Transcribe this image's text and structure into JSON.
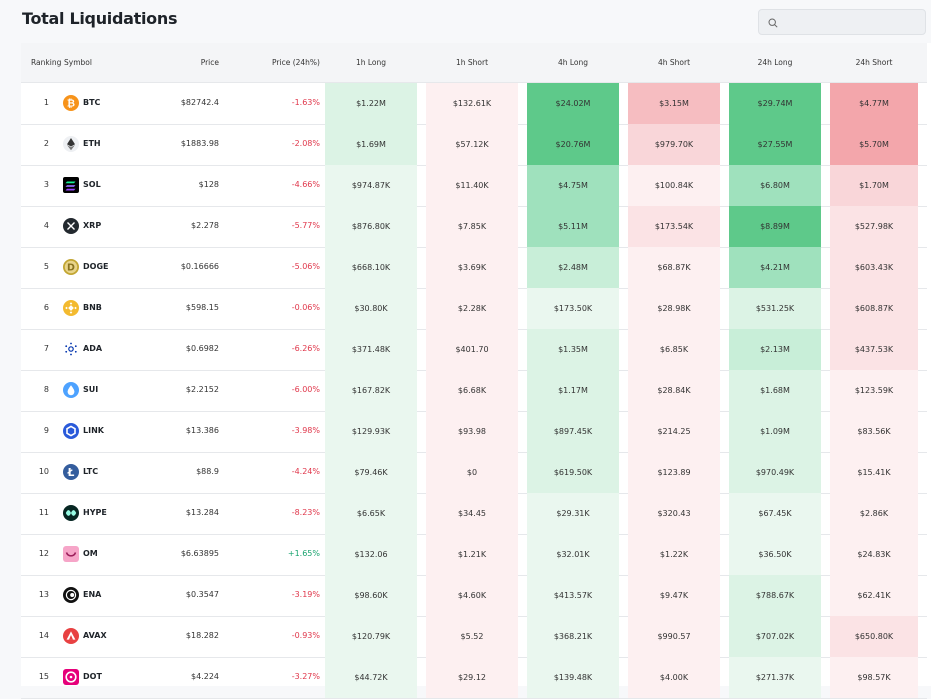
{
  "title": "Total Liquidations",
  "search": {
    "value": "",
    "icon": "search-icon"
  },
  "colors": {
    "long_levels": [
      "#eaf7ef",
      "#dcf3e5",
      "#c8eed8",
      "#9fe1bd",
      "#5ec98a"
    ],
    "short_levels": [
      "#fdf0f1",
      "#fbe3e5",
      "#f9d6d9",
      "#f6bdc1",
      "#f3a6ab"
    ],
    "negative": "#e0374b",
    "positive": "#18a36e"
  },
  "headers": {
    "ranking": "Ranking",
    "symbol": "Symbol",
    "price": "Price",
    "change": "Price (24h%)",
    "h1_long": "1h Long",
    "h1_short": "1h Short",
    "h4_long": "4h Long",
    "h4_short": "4h Short",
    "h24_long": "24h Long",
    "h24_short": "24h Short"
  },
  "rows": [
    {
      "rank": "1",
      "symbol": "BTC",
      "icon": "btc-icon",
      "price": "$82742.4",
      "change": "-1.63%",
      "h1l": "$1.22M",
      "h1s": "$132.61K",
      "h4l": "$24.02M",
      "h4s": "$3.15M",
      "h24l": "$29.74M",
      "h24s": "$4.77M",
      "lv": [
        1,
        0,
        4,
        3,
        4,
        4
      ]
    },
    {
      "rank": "2",
      "symbol": "ETH",
      "icon": "eth-icon",
      "price": "$1883.98",
      "change": "-2.08%",
      "h1l": "$1.69M",
      "h1s": "$57.12K",
      "h4l": "$20.76M",
      "h4s": "$979.70K",
      "h24l": "$27.55M",
      "h24s": "$5.70M",
      "lv": [
        1,
        0,
        4,
        2,
        4,
        4
      ]
    },
    {
      "rank": "3",
      "symbol": "SOL",
      "icon": "sol-icon",
      "price": "$128",
      "change": "-4.66%",
      "h1l": "$974.87K",
      "h1s": "$11.40K",
      "h4l": "$4.75M",
      "h4s": "$100.84K",
      "h24l": "$6.80M",
      "h24s": "$1.70M",
      "lv": [
        0,
        0,
        3,
        0,
        3,
        2
      ]
    },
    {
      "rank": "4",
      "symbol": "XRP",
      "icon": "xrp-icon",
      "price": "$2.278",
      "change": "-5.77%",
      "h1l": "$876.80K",
      "h1s": "$7.85K",
      "h4l": "$5.11M",
      "h4s": "$173.54K",
      "h24l": "$8.89M",
      "h24s": "$527.98K",
      "lv": [
        0,
        0,
        3,
        1,
        4,
        1
      ]
    },
    {
      "rank": "5",
      "symbol": "DOGE",
      "icon": "doge-icon",
      "price": "$0.16666",
      "change": "-5.06%",
      "h1l": "$668.10K",
      "h1s": "$3.69K",
      "h4l": "$2.48M",
      "h4s": "$68.87K",
      "h24l": "$4.21M",
      "h24s": "$603.43K",
      "lv": [
        0,
        0,
        2,
        0,
        3,
        1
      ]
    },
    {
      "rank": "6",
      "symbol": "BNB",
      "icon": "bnb-icon",
      "price": "$598.15",
      "change": "-0.06%",
      "h1l": "$30.80K",
      "h1s": "$2.28K",
      "h4l": "$173.50K",
      "h4s": "$28.98K",
      "h24l": "$531.25K",
      "h24s": "$608.87K",
      "lv": [
        0,
        0,
        0,
        0,
        1,
        1
      ]
    },
    {
      "rank": "7",
      "symbol": "ADA",
      "icon": "ada-icon",
      "price": "$0.6982",
      "change": "-6.26%",
      "h1l": "$371.48K",
      "h1s": "$401.70",
      "h4l": "$1.35M",
      "h4s": "$6.85K",
      "h24l": "$2.13M",
      "h24s": "$437.53K",
      "lv": [
        0,
        0,
        1,
        0,
        2,
        1
      ]
    },
    {
      "rank": "8",
      "symbol": "SUI",
      "icon": "sui-icon",
      "price": "$2.2152",
      "change": "-6.00%",
      "h1l": "$167.82K",
      "h1s": "$6.68K",
      "h4l": "$1.17M",
      "h4s": "$28.84K",
      "h24l": "$1.68M",
      "h24s": "$123.59K",
      "lv": [
        0,
        0,
        1,
        0,
        1,
        0
      ]
    },
    {
      "rank": "9",
      "symbol": "LINK",
      "icon": "link-icon",
      "price": "$13.386",
      "change": "-3.98%",
      "h1l": "$129.93K",
      "h1s": "$93.98",
      "h4l": "$897.45K",
      "h4s": "$214.25",
      "h24l": "$1.09M",
      "h24s": "$83.56K",
      "lv": [
        0,
        0,
        1,
        0,
        1,
        0
      ]
    },
    {
      "rank": "10",
      "symbol": "LTC",
      "icon": "ltc-icon",
      "price": "$88.9",
      "change": "-4.24%",
      "h1l": "$79.46K",
      "h1s": "$0",
      "h4l": "$619.50K",
      "h4s": "$123.89",
      "h24l": "$970.49K",
      "h24s": "$15.41K",
      "lv": [
        0,
        0,
        1,
        0,
        1,
        0
      ]
    },
    {
      "rank": "11",
      "symbol": "HYPE",
      "icon": "hype-icon",
      "price": "$13.284",
      "change": "-8.23%",
      "h1l": "$6.65K",
      "h1s": "$34.45",
      "h4l": "$29.31K",
      "h4s": "$320.43",
      "h24l": "$67.45K",
      "h24s": "$2.86K",
      "lv": [
        0,
        0,
        0,
        0,
        0,
        0
      ]
    },
    {
      "rank": "12",
      "symbol": "OM",
      "icon": "om-icon",
      "price": "$6.63895",
      "change": "+1.65%",
      "h1l": "$132.06",
      "h1s": "$1.21K",
      "h4l": "$32.01K",
      "h4s": "$1.22K",
      "h24l": "$36.50K",
      "h24s": "$24.83K",
      "lv": [
        0,
        0,
        0,
        0,
        0,
        0
      ]
    },
    {
      "rank": "13",
      "symbol": "ENA",
      "icon": "ena-icon",
      "price": "$0.3547",
      "change": "-3.19%",
      "h1l": "$98.60K",
      "h1s": "$4.60K",
      "h4l": "$413.57K",
      "h4s": "$9.47K",
      "h24l": "$788.67K",
      "h24s": "$62.41K",
      "lv": [
        0,
        0,
        0,
        0,
        1,
        0
      ]
    },
    {
      "rank": "14",
      "symbol": "AVAX",
      "icon": "avax-icon",
      "price": "$18.282",
      "change": "-0.93%",
      "h1l": "$120.79K",
      "h1s": "$5.52",
      "h4l": "$368.21K",
      "h4s": "$990.57",
      "h24l": "$707.02K",
      "h24s": "$650.80K",
      "lv": [
        0,
        0,
        0,
        0,
        1,
        1
      ]
    },
    {
      "rank": "15",
      "symbol": "DOT",
      "icon": "dot-icon",
      "price": "$4.224",
      "change": "-3.27%",
      "h1l": "$44.72K",
      "h1s": "$29.12",
      "h4l": "$139.48K",
      "h4s": "$4.00K",
      "h24l": "$271.37K",
      "h24s": "$98.57K",
      "lv": [
        0,
        0,
        0,
        0,
        0,
        0
      ]
    }
  ]
}
